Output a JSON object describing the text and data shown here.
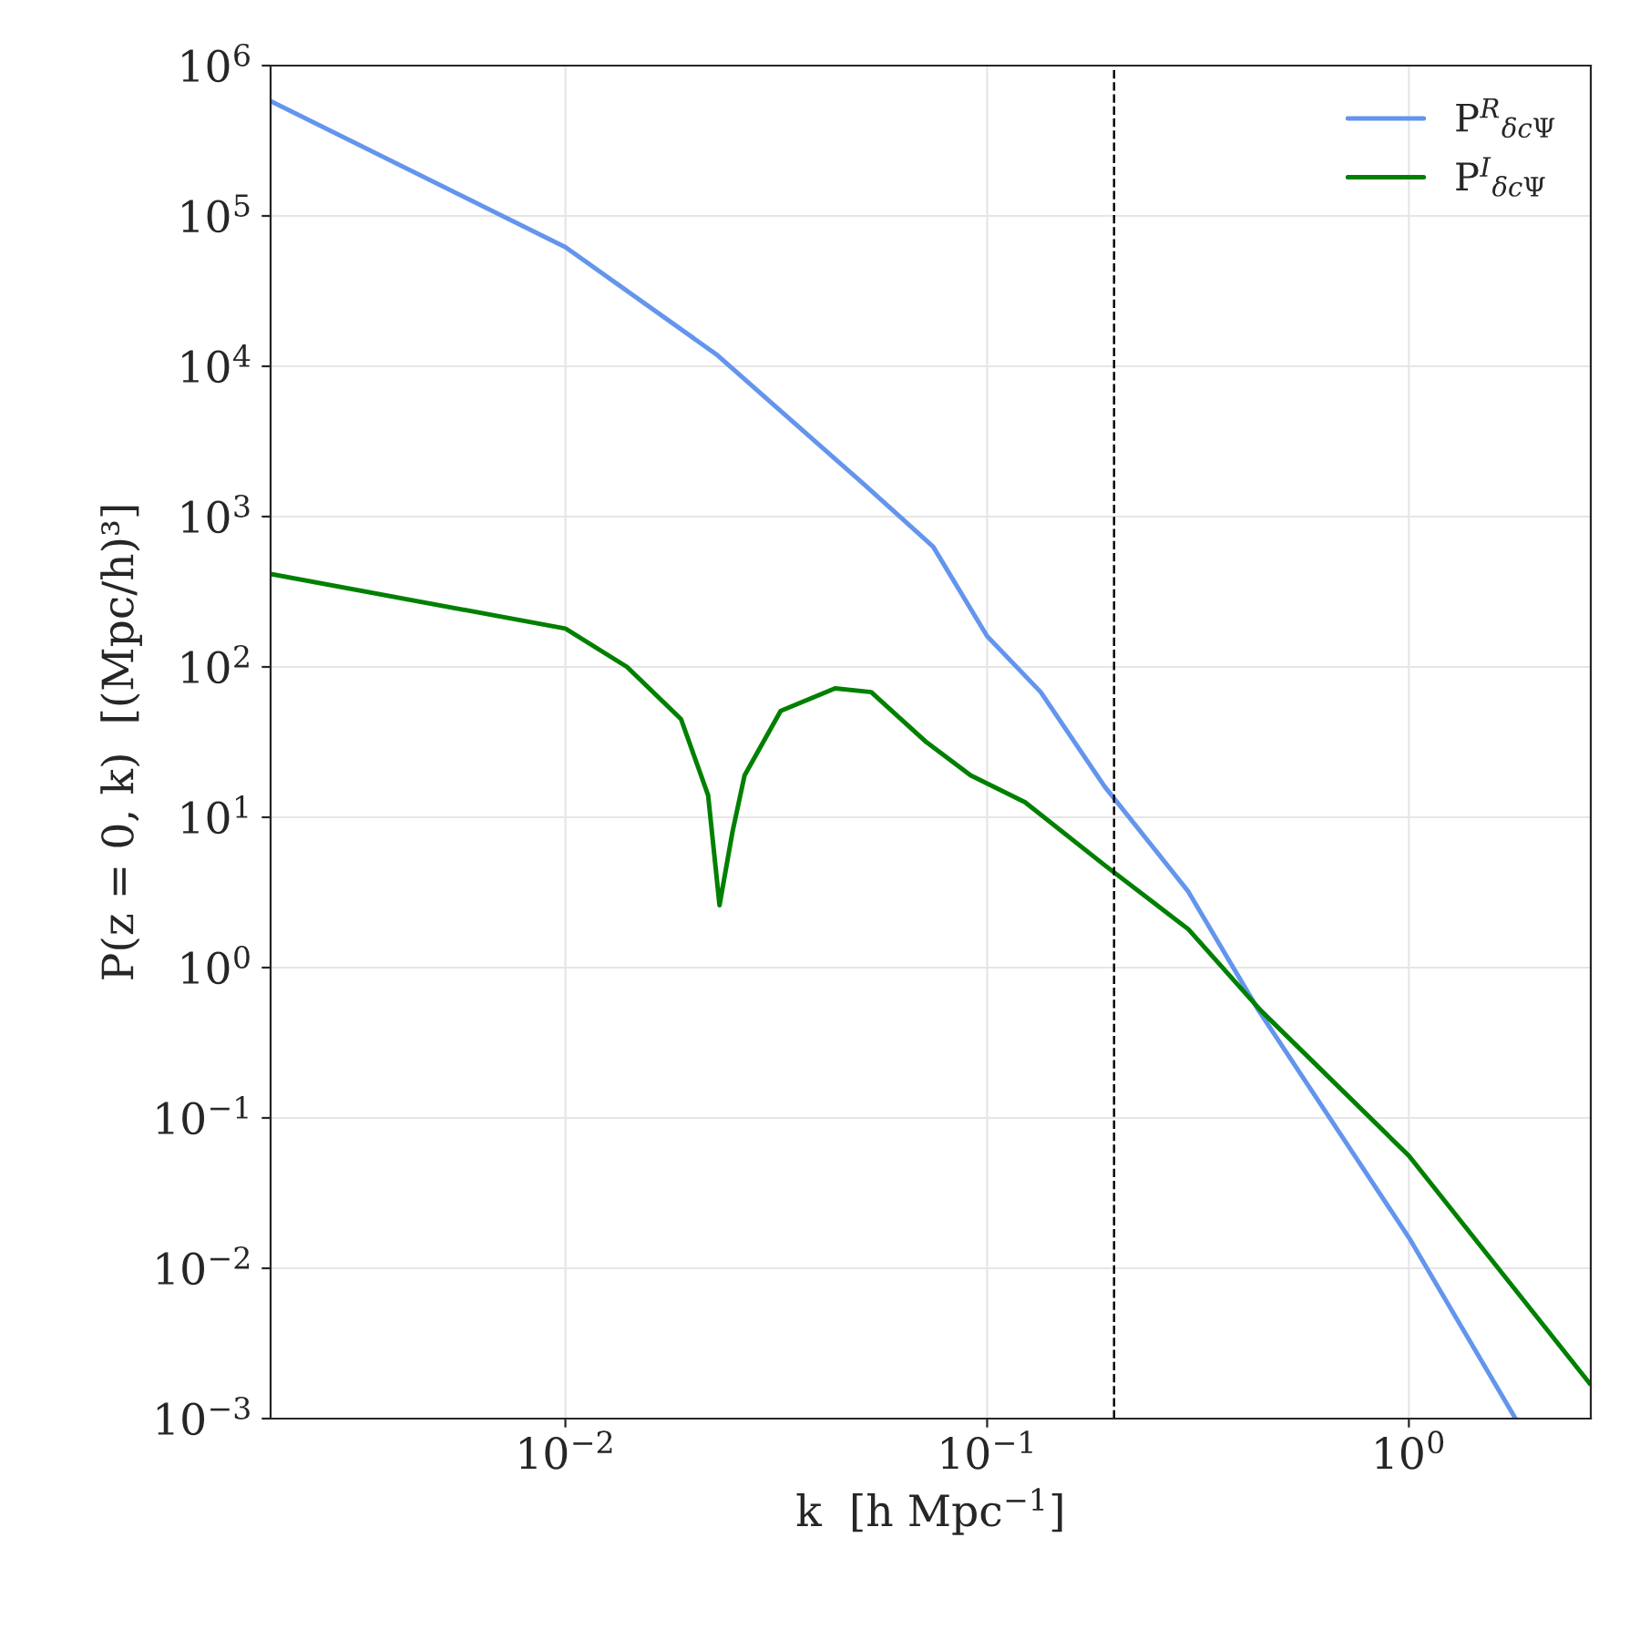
{
  "chart_data": {
    "type": "line",
    "xlabel": "k  [h Mpc$^{−1}$]",
    "ylabel": "P(z = 0, k)  [(Mpc/h)³]",
    "log": "xy",
    "xlim": [
      0.002,
      2.7
    ],
    "ylim": [
      0.001,
      1000000
    ],
    "xticks": [
      {
        "value": 0.01,
        "label": "10$^{−2}$"
      },
      {
        "value": 0.1,
        "label": "10$^{−1}$"
      },
      {
        "value": 1,
        "label": "10$^{0}$"
      }
    ],
    "yticks": [
      {
        "value": 0.001,
        "label": "10$^{−3}$"
      },
      {
        "value": 0.01,
        "label": "10$^{−2}$"
      },
      {
        "value": 0.1,
        "label": "10$^{−1}$"
      },
      {
        "value": 1,
        "label": "10$^{0}$"
      },
      {
        "value": 10,
        "label": "10$^{1}$"
      },
      {
        "value": 100,
        "label": "10$^{2}$"
      },
      {
        "value": 1000,
        "label": "10$^{3}$"
      },
      {
        "value": 10000,
        "label": "10$^{4}$"
      },
      {
        "value": 100000,
        "label": "10$^{5}$"
      },
      {
        "value": 1000000,
        "label": "10$^{6}$"
      }
    ],
    "grid": true,
    "legend": "top right",
    "marker": "none",
    "line_style": "solid",
    "ref_lines": [
      {
        "axis": "x",
        "value": 0.2,
        "color": "#000000",
        "line_style": "dashed"
      }
    ],
    "series": [
      {
        "name": "P$^{R}$$_{δcΨ}$",
        "color": "#6495ed",
        "x": [
          0.002,
          0.01,
          0.0228,
          0.0503,
          0.0745,
          0.1,
          0.134,
          0.19,
          0.3,
          0.44,
          1,
          1.79
        ],
        "values": [
          580000,
          62000,
          12000,
          1700,
          630,
          160,
          68,
          16,
          3.2,
          0.52,
          0.016,
          0.001
        ]
      },
      {
        "name": "P$^{I}$$_{δcΨ}$",
        "color": "#008000",
        "x": [
          0.002,
          0.01,
          0.014,
          0.0188,
          0.0218,
          0.0232,
          0.0249,
          0.0266,
          0.0324,
          0.0436,
          0.0531,
          0.0714,
          0.0914,
          0.123,
          0.19,
          0.3,
          0.445,
          1,
          2.69
        ],
        "values": [
          415,
          180,
          100,
          45,
          14,
          2.6,
          8,
          19,
          51,
          72,
          68,
          32,
          19,
          12.6,
          4.8,
          1.8,
          0.52,
          0.056,
          0.0017
        ]
      }
    ]
  }
}
